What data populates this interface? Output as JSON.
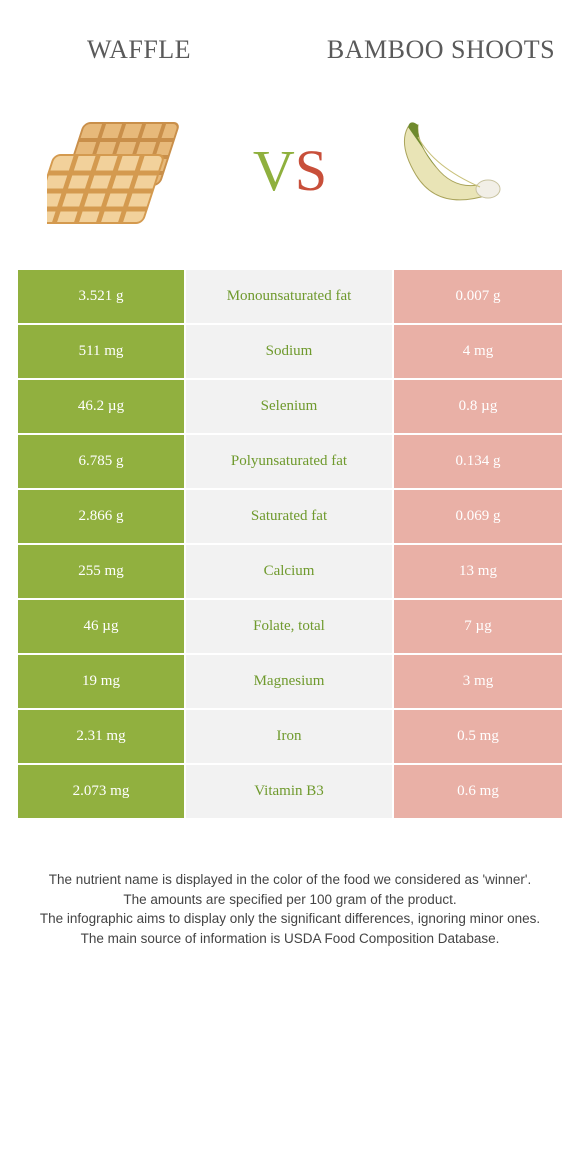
{
  "colors": {
    "left_bg": "#91b03f",
    "right_bg": "#e9b0a6",
    "mid_bg": "#f2f2f2",
    "label_green": "#6f9a2d",
    "label_red": "#c6624f",
    "title": "#5a5a5a"
  },
  "header": {
    "left_title": "Waffle",
    "right_title": "Bamboo shoots"
  },
  "vs": {
    "v": "V",
    "s": "S"
  },
  "rows": [
    {
      "left": "3.521 g",
      "label": "Monounsaturated fat",
      "right": "0.007 g",
      "winner": "left"
    },
    {
      "left": "511 mg",
      "label": "Sodium",
      "right": "4 mg",
      "winner": "left"
    },
    {
      "left": "46.2 µg",
      "label": "Selenium",
      "right": "0.8 µg",
      "winner": "left"
    },
    {
      "left": "6.785 g",
      "label": "Polyunsaturated fat",
      "right": "0.134 g",
      "winner": "left"
    },
    {
      "left": "2.866 g",
      "label": "Saturated fat",
      "right": "0.069 g",
      "winner": "left"
    },
    {
      "left": "255 mg",
      "label": "Calcium",
      "right": "13 mg",
      "winner": "left"
    },
    {
      "left": "46 µg",
      "label": "Folate, total",
      "right": "7 µg",
      "winner": "left"
    },
    {
      "left": "19 mg",
      "label": "Magnesium",
      "right": "3 mg",
      "winner": "left"
    },
    {
      "left": "2.31 mg",
      "label": "Iron",
      "right": "0.5 mg",
      "winner": "left"
    },
    {
      "left": "2.073 mg",
      "label": "Vitamin B3",
      "right": "0.6 mg",
      "winner": "left"
    }
  ],
  "footnotes": [
    "The nutrient name is displayed in the color of the food we considered as 'winner'.",
    "The amounts are specified per 100 gram of the product.",
    "The infographic aims to display only the significant differences, ignoring minor ones.",
    "The main source of information is USDA Food Composition Database."
  ]
}
